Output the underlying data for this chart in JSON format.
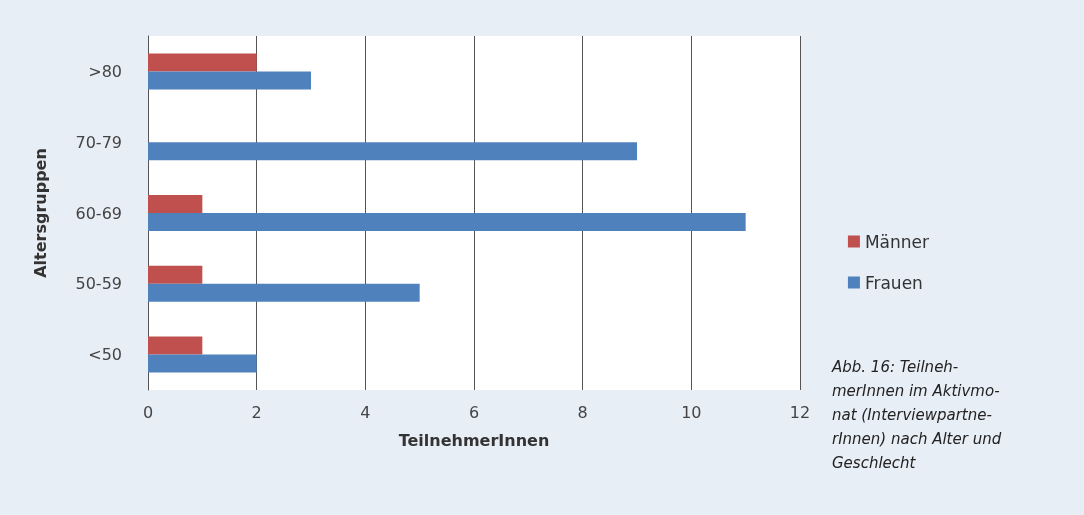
{
  "chart_data": {
    "type": "bar",
    "orientation": "horizontal",
    "categories": [
      ">80",
      "70-79",
      "60-69",
      "50-59",
      "<50"
    ],
    "series": [
      {
        "name": "Männer",
        "color": "#c0504d",
        "values": [
          2,
          0,
          1,
          1,
          1
        ]
      },
      {
        "name": "Frauen",
        "color": "#4f81bd",
        "values": [
          3,
          9,
          11,
          5,
          2
        ]
      }
    ],
    "xlim": [
      0,
      12
    ],
    "xticks": [
      0,
      2,
      4,
      6,
      8,
      10,
      12
    ],
    "xlabel": "TeilnehmerInnen",
    "ylabel": "Altersgruppen",
    "grid": "x",
    "legend": "right",
    "annotations": [
      "Abb. 16: Teilneh-\nmerInnen im Aktivmo-\nnat (Interviewpartne-\nrInnen) nach Alter und\nGeschlecht"
    ]
  }
}
